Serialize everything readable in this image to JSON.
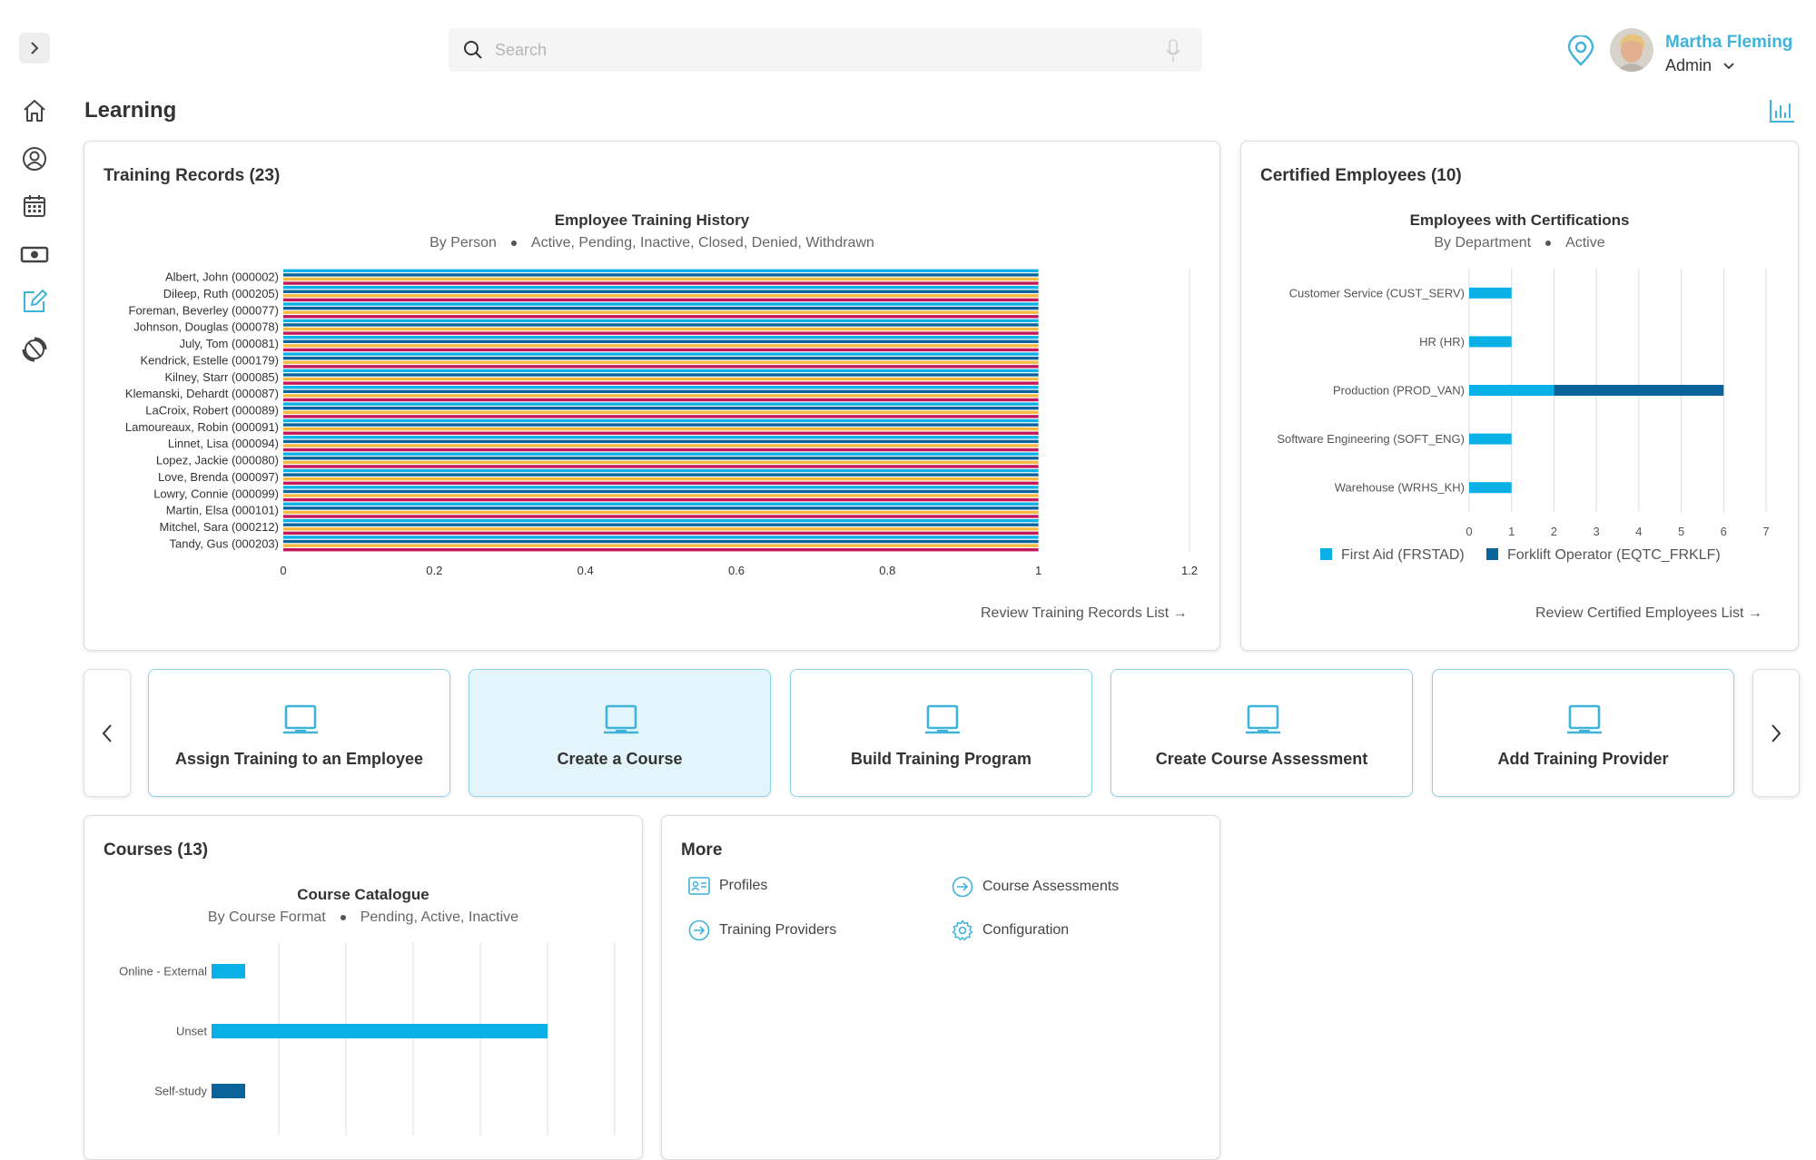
{
  "header": {
    "search_placeholder": "Search",
    "user": {
      "name": "Martha Fleming",
      "role": "Admin"
    }
  },
  "sidebar": {
    "items": [
      {
        "icon": "home-icon"
      },
      {
        "icon": "user-circle-icon"
      },
      {
        "icon": "calendar-icon"
      },
      {
        "icon": "money-icon"
      },
      {
        "icon": "edit-icon",
        "active": true
      },
      {
        "icon": "refresh-icon"
      }
    ]
  },
  "page": {
    "title": "Learning"
  },
  "training_records": {
    "title": "Training Records (23)",
    "link": "Review Training Records List →"
  },
  "certified": {
    "title": "Certified Employees (10)",
    "link": "Review Certified Employees List →"
  },
  "actions": {
    "items": [
      {
        "label": "Assign Training to an Employee"
      },
      {
        "label": "Create a Course",
        "active": true
      },
      {
        "label": "Build Training Program"
      },
      {
        "label": "Create Course Assessment"
      },
      {
        "label": "Add Training Provider"
      }
    ]
  },
  "courses": {
    "title": "Courses (13)"
  },
  "more": {
    "title": "More",
    "items": [
      {
        "label": "Profiles",
        "icon": "id-card-icon"
      },
      {
        "label": "Course Assessments",
        "icon": "arrow-circle-icon"
      },
      {
        "label": "Training Providers",
        "icon": "arrow-circle-icon"
      },
      {
        "label": "Configuration",
        "icon": "gear-icon"
      }
    ]
  },
  "colors": {
    "accent": "#3fb4d8",
    "cyan": "#0bb0e6",
    "navy": "#0a639b",
    "crimson": "#c2185b",
    "amber": "#f5b942"
  },
  "chart_data": [
    {
      "type": "bar",
      "orientation": "horizontal",
      "title": "Employee Training History",
      "subtitle": [
        "By Person",
        "Active, Pending, Inactive, Closed, Denied, Withdrawn"
      ],
      "categories": [
        "Albert, John (000002)",
        "Dileep, Ruth (000205)",
        "Foreman, Beverley (000077)",
        "Johnson, Douglas (000078)",
        "July, Tom (000081)",
        "Kendrick, Estelle (000179)",
        "Kilney, Starr (000085)",
        "Klemanski, Dehardt (000087)",
        "LaCroix, Robert (000089)",
        "Lamoureaux, Robin (000091)",
        "Linnet, Lisa (000094)",
        "Lopez, Jackie (000080)",
        "Love, Brenda (000097)",
        "Lowry, Connie (000099)",
        "Martin, Elsa (000101)",
        "Mitchel, Sara (000212)",
        "Tandy, Gus (000203)"
      ],
      "bars_per_category": 4,
      "bar_colors": [
        "#0bb0e6",
        "#0a639b",
        "#f5b942",
        "#c2185b"
      ],
      "value": 1,
      "xticks": [
        "0",
        "0.2",
        "0.4",
        "0.6",
        "0.8",
        "1",
        "1.2"
      ],
      "xlim": [
        0,
        1.2
      ]
    },
    {
      "type": "bar",
      "orientation": "horizontal",
      "stacked": true,
      "title": "Employees with Certifications",
      "subtitle": [
        "By Department",
        "Active"
      ],
      "categories": [
        "Customer Service (CUST_SERV)",
        "HR (HR)",
        "Production (PROD_VAN)",
        "Software Engineering (SOFT_ENG)",
        "Warehouse (WRHS_KH)"
      ],
      "series": [
        {
          "name": "First Aid (FRSTAD)",
          "color": "#0bb0e6",
          "values": [
            1,
            1,
            2,
            1,
            1
          ]
        },
        {
          "name": "Forklift Operator (EQTC_FRKLF)",
          "color": "#0a639b",
          "values": [
            0,
            0,
            4,
            0,
            0
          ]
        }
      ],
      "xticks": [
        "0",
        "1",
        "2",
        "3",
        "4",
        "5",
        "6",
        "7"
      ],
      "xlim": [
        0,
        7
      ]
    },
    {
      "type": "bar",
      "orientation": "horizontal",
      "title": "Course Catalogue",
      "subtitle": [
        "By Course Format",
        "Pending, Active, Inactive"
      ],
      "categories": [
        "Online - External",
        "Unset",
        "Self-study"
      ],
      "values": [
        1,
        10,
        1
      ],
      "bar_colors": [
        "#0bb0e6",
        "#0bb0e6",
        "#0a639b"
      ],
      "xlim": [
        0,
        12
      ]
    }
  ]
}
